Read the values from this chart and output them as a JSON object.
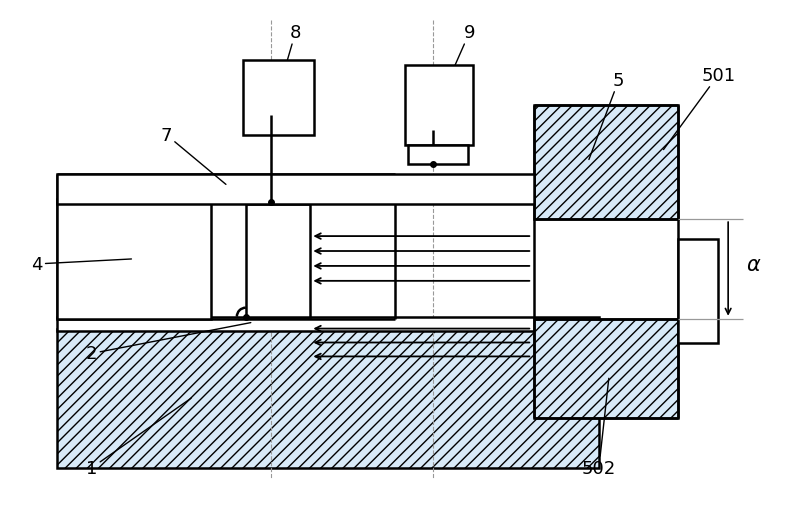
{
  "bg_color": "#ffffff",
  "lc": "#000000",
  "lc_gray": "#999999",
  "hatch_fc": "#d8eaf8",
  "lw_main": 1.8,
  "lw_thin": 1.0,
  "fs": 13,
  "arrow_color": "#000000"
}
